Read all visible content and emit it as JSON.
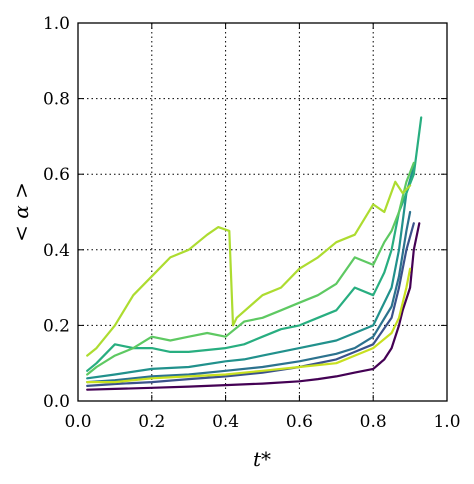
{
  "chart_data": {
    "type": "line",
    "xlabel": "t*",
    "ylabel": "< α >",
    "xlim": [
      0.0,
      1.0
    ],
    "ylim": [
      0.0,
      1.0
    ],
    "xticks": [
      "0.0",
      "0.2",
      "0.4",
      "0.6",
      "0.8",
      "1.0"
    ],
    "yticks": [
      "0.0",
      "0.2",
      "0.4",
      "0.6",
      "0.8",
      "1.0"
    ],
    "grid": true,
    "legend": "none",
    "colors": [
      "#440154",
      "#3b528b",
      "#2c728e",
      "#21918c",
      "#28ae80",
      "#5ec962",
      "#addc30",
      "#c8e020"
    ],
    "series": [
      {
        "color": "#440154",
        "x": [
          0.025,
          0.1,
          0.2,
          0.3,
          0.4,
          0.5,
          0.6,
          0.65,
          0.7,
          0.75,
          0.8,
          0.83,
          0.85,
          0.87,
          0.88,
          0.9,
          0.91,
          0.925
        ],
        "y": [
          0.03,
          0.032,
          0.035,
          0.038,
          0.042,
          0.046,
          0.052,
          0.058,
          0.065,
          0.075,
          0.085,
          0.11,
          0.14,
          0.2,
          0.24,
          0.3,
          0.4,
          0.47
        ]
      },
      {
        "color": "#3b528b",
        "x": [
          0.025,
          0.1,
          0.2,
          0.3,
          0.4,
          0.5,
          0.6,
          0.7,
          0.75,
          0.8,
          0.85,
          0.87,
          0.89,
          0.91
        ],
        "y": [
          0.04,
          0.045,
          0.05,
          0.058,
          0.065,
          0.075,
          0.09,
          0.11,
          0.13,
          0.15,
          0.22,
          0.3,
          0.4,
          0.47
        ]
      },
      {
        "color": "#2c728e",
        "x": [
          0.025,
          0.1,
          0.2,
          0.3,
          0.4,
          0.5,
          0.6,
          0.7,
          0.75,
          0.8,
          0.85,
          0.87,
          0.89,
          0.9
        ],
        "y": [
          0.05,
          0.055,
          0.065,
          0.07,
          0.08,
          0.09,
          0.105,
          0.125,
          0.14,
          0.17,
          0.25,
          0.33,
          0.45,
          0.5
        ]
      },
      {
        "color": "#21918c",
        "x": [
          0.025,
          0.1,
          0.2,
          0.3,
          0.4,
          0.45,
          0.5,
          0.6,
          0.7,
          0.75,
          0.8,
          0.85,
          0.87,
          0.89,
          0.91
        ],
        "y": [
          0.06,
          0.07,
          0.085,
          0.09,
          0.105,
          0.11,
          0.12,
          0.14,
          0.16,
          0.18,
          0.2,
          0.3,
          0.4,
          0.55,
          0.62
        ]
      },
      {
        "color": "#28ae80",
        "x": [
          0.025,
          0.05,
          0.1,
          0.15,
          0.2,
          0.25,
          0.3,
          0.35,
          0.4,
          0.45,
          0.5,
          0.55,
          0.6,
          0.65,
          0.7,
          0.75,
          0.8,
          0.83,
          0.85,
          0.87,
          0.89,
          0.91,
          0.93
        ],
        "y": [
          0.08,
          0.1,
          0.15,
          0.14,
          0.14,
          0.13,
          0.13,
          0.135,
          0.14,
          0.15,
          0.17,
          0.19,
          0.2,
          0.22,
          0.24,
          0.3,
          0.28,
          0.34,
          0.4,
          0.5,
          0.55,
          0.6,
          0.75
        ]
      },
      {
        "color": "#5ec962",
        "x": [
          0.025,
          0.05,
          0.1,
          0.15,
          0.2,
          0.25,
          0.3,
          0.35,
          0.4,
          0.45,
          0.5,
          0.55,
          0.6,
          0.65,
          0.7,
          0.75,
          0.8,
          0.83,
          0.85,
          0.87,
          0.89,
          0.91
        ],
        "y": [
          0.07,
          0.09,
          0.12,
          0.14,
          0.17,
          0.16,
          0.17,
          0.18,
          0.17,
          0.21,
          0.22,
          0.24,
          0.26,
          0.28,
          0.31,
          0.38,
          0.36,
          0.42,
          0.45,
          0.5,
          0.58,
          0.63
        ]
      },
      {
        "color": "#addc30",
        "x": [
          0.025,
          0.05,
          0.1,
          0.15,
          0.2,
          0.25,
          0.3,
          0.35,
          0.38,
          0.41,
          0.42,
          0.43,
          0.5,
          0.55,
          0.6,
          0.65,
          0.7,
          0.75,
          0.8,
          0.83,
          0.86,
          0.88,
          0.9
        ],
        "y": [
          0.12,
          0.14,
          0.2,
          0.28,
          0.33,
          0.38,
          0.4,
          0.44,
          0.46,
          0.45,
          0.2,
          0.22,
          0.28,
          0.3,
          0.35,
          0.38,
          0.42,
          0.44,
          0.52,
          0.5,
          0.58,
          0.55,
          0.57
        ]
      },
      {
        "color": "#c8e020",
        "x": [
          0.025,
          0.1,
          0.2,
          0.3,
          0.4,
          0.5,
          0.6,
          0.7,
          0.75,
          0.8,
          0.85,
          0.87,
          0.89,
          0.9
        ],
        "y": [
          0.05,
          0.05,
          0.06,
          0.065,
          0.07,
          0.08,
          0.09,
          0.1,
          0.12,
          0.14,
          0.18,
          0.22,
          0.3,
          0.35
        ]
      }
    ]
  }
}
